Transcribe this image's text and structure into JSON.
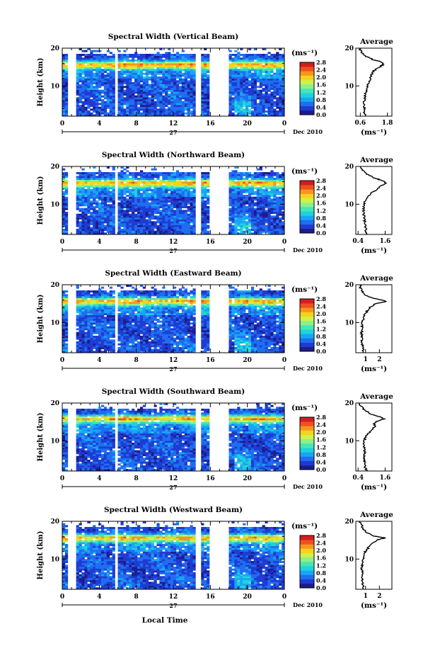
{
  "figure": {
    "ylabel": "Height (km)",
    "xlabel": "Local Time",
    "date_label": "Dec 2010",
    "day_label": "27",
    "average_title": "Average",
    "colorbar_unit": "(ms⁻¹)",
    "average_xlabel": "(ms⁻¹)"
  },
  "colors": {
    "colormap": [
      "#1c1c8c",
      "#1e3cd2",
      "#1e6ef0",
      "#19a5f5",
      "#1ed2dc",
      "#46e6b4",
      "#8cf08c",
      "#d2f046",
      "#f5d21e",
      "#f5961e",
      "#f0501e",
      "#d21e1e"
    ],
    "no_data": "#ffffff"
  },
  "chart_data": [
    {
      "type": "heatmap",
      "title": "Spectral Width (Vertical Beam)",
      "x_ticks": [
        "0",
        "4",
        "8",
        "12",
        "16",
        "20",
        "0"
      ],
      "xlim": [
        0,
        24
      ],
      "y_ticks": [
        "20",
        "10"
      ],
      "ylim": [
        2,
        20
      ],
      "colorbar_ticks": [
        "2.8",
        "2.4",
        "2.0",
        "1.6",
        "1.2",
        "0.8",
        "0.4",
        "0.0"
      ],
      "colorbar_range": [
        0,
        2.8
      ],
      "data_gaps_hours": [
        [
          0.5,
          1.4
        ],
        [
          5.6,
          6.0
        ],
        [
          14.4,
          15.0
        ],
        [
          15.8,
          18.0
        ]
      ],
      "average": {
        "type": "line",
        "title": "Average",
        "x_ticks": [
          "0.6",
          "1.8"
        ],
        "xlim": [
          0.4,
          2.0
        ],
        "y_ticks": [
          "20",
          "10"
        ],
        "profile": [
          [
            2,
            0.8
          ],
          [
            3,
            0.78
          ],
          [
            4,
            0.8
          ],
          [
            5,
            0.75
          ],
          [
            6,
            0.78
          ],
          [
            7,
            0.8
          ],
          [
            8,
            0.82
          ],
          [
            9,
            0.88
          ],
          [
            10,
            0.92
          ],
          [
            11,
            0.98
          ],
          [
            12,
            1.05
          ],
          [
            13,
            1.1
          ],
          [
            14,
            1.2
          ],
          [
            15,
            1.45
          ],
          [
            15.6,
            1.6
          ],
          [
            16.3,
            1.55
          ],
          [
            17,
            1.15
          ],
          [
            18,
            0.8
          ],
          [
            19,
            0.65
          ],
          [
            20,
            0.55
          ]
        ]
      }
    },
    {
      "type": "heatmap",
      "title": "Spectral Width (Northward Beam)",
      "x_ticks": [
        "0",
        "4",
        "8",
        "12",
        "16",
        "20",
        "0"
      ],
      "xlim": [
        0,
        24
      ],
      "y_ticks": [
        "20",
        "10"
      ],
      "ylim": [
        2,
        20
      ],
      "colorbar_ticks": [
        "2.8",
        "2.4",
        "2.0",
        "1.6",
        "1.2",
        "0.8",
        "0.4",
        "0.0"
      ],
      "colorbar_range": [
        0,
        2.8
      ],
      "data_gaps_hours": [
        [
          0.5,
          1.4
        ],
        [
          5.6,
          6.0
        ],
        [
          14.4,
          15.0
        ],
        [
          15.8,
          18.0
        ]
      ],
      "average": {
        "type": "line",
        "title": "Average",
        "x_ticks": [
          "0.4",
          "1.6"
        ],
        "xlim": [
          0.3,
          1.9
        ],
        "y_ticks": [
          "20",
          "10"
        ],
        "profile": [
          [
            2,
            0.8
          ],
          [
            3,
            0.75
          ],
          [
            4,
            0.72
          ],
          [
            5,
            0.7
          ],
          [
            6,
            0.68
          ],
          [
            7,
            0.66
          ],
          [
            8,
            0.65
          ],
          [
            9,
            0.64
          ],
          [
            10,
            0.66
          ],
          [
            11,
            0.72
          ],
          [
            12,
            0.82
          ],
          [
            13,
            1.0
          ],
          [
            14,
            1.25
          ],
          [
            15,
            1.45
          ],
          [
            15.6,
            1.65
          ],
          [
            16.4,
            1.4
          ],
          [
            17,
            1.1
          ],
          [
            18,
            0.8
          ],
          [
            19,
            0.6
          ],
          [
            20,
            0.5
          ]
        ]
      }
    },
    {
      "type": "heatmap",
      "title": "Spectral Width (Eastward Beam)",
      "x_ticks": [
        "0",
        "4",
        "8",
        "12",
        "16",
        "20",
        "0"
      ],
      "xlim": [
        0,
        24
      ],
      "y_ticks": [
        "20",
        "10"
      ],
      "ylim": [
        2,
        20
      ],
      "colorbar_ticks": [
        "2.8",
        "2.4",
        "2.0",
        "1.6",
        "1.2",
        "0.8",
        "0.4",
        "0.0"
      ],
      "colorbar_range": [
        0,
        2.8
      ],
      "data_gaps_hours": [
        [
          0.5,
          1.4
        ],
        [
          5.6,
          6.0
        ],
        [
          14.4,
          15.0
        ],
        [
          15.8,
          18.0
        ]
      ],
      "average": {
        "type": "line",
        "title": "Average",
        "x_ticks": [
          "1",
          "2"
        ],
        "xlim": [
          0.3,
          2.9
        ],
        "y_ticks": [
          "20",
          "10"
        ],
        "profile": [
          [
            2,
            0.9
          ],
          [
            3,
            0.8
          ],
          [
            4,
            0.78
          ],
          [
            5,
            0.76
          ],
          [
            6,
            0.74
          ],
          [
            7,
            0.72
          ],
          [
            8,
            0.72
          ],
          [
            9,
            0.74
          ],
          [
            10,
            0.78
          ],
          [
            11,
            0.85
          ],
          [
            12,
            0.95
          ],
          [
            13,
            1.1
          ],
          [
            14,
            1.3
          ],
          [
            15,
            1.7
          ],
          [
            15.6,
            2.5
          ],
          [
            16.4,
            1.6
          ],
          [
            17,
            1.1
          ],
          [
            18,
            0.8
          ],
          [
            19,
            0.65
          ],
          [
            20,
            0.6
          ]
        ]
      }
    },
    {
      "type": "heatmap",
      "title": "Spectral Width (Southward Beam)",
      "x_ticks": [
        "0",
        "4",
        "8",
        "12",
        "16",
        "20",
        "0"
      ],
      "xlim": [
        0,
        24
      ],
      "y_ticks": [
        "20",
        "10"
      ],
      "ylim": [
        2,
        20
      ],
      "colorbar_ticks": [
        "2.8",
        "2.4",
        "2.0",
        "1.6",
        "1.2",
        "0.8",
        "0.4",
        "0.0"
      ],
      "colorbar_range": [
        0,
        2.8
      ],
      "data_gaps_hours": [
        [
          0.5,
          1.4
        ],
        [
          5.6,
          6.0
        ],
        [
          14.4,
          15.0
        ],
        [
          15.8,
          18.0
        ]
      ],
      "average": {
        "type": "line",
        "title": "Average",
        "x_ticks": [
          "0.4",
          "1.6"
        ],
        "xlim": [
          0.3,
          1.9
        ],
        "y_ticks": [
          "20",
          "10"
        ],
        "profile": [
          [
            2,
            0.8
          ],
          [
            3,
            0.72
          ],
          [
            4,
            0.7
          ],
          [
            5,
            0.66
          ],
          [
            6,
            0.68
          ],
          [
            7,
            0.72
          ],
          [
            8,
            0.66
          ],
          [
            9,
            0.64
          ],
          [
            10,
            0.66
          ],
          [
            11,
            0.74
          ],
          [
            12,
            0.85
          ],
          [
            13,
            1.05
          ],
          [
            14,
            1.15
          ],
          [
            14.6,
            1.1
          ],
          [
            15.2,
            1.25
          ],
          [
            15.8,
            1.55
          ],
          [
            16.5,
            1.3
          ],
          [
            17,
            1.0
          ],
          [
            18,
            0.7
          ],
          [
            19,
            0.55
          ],
          [
            20,
            0.45
          ]
        ]
      }
    },
    {
      "type": "heatmap",
      "title": "Spectral Width (Westward Beam)",
      "x_ticks": [
        "0",
        "4",
        "8",
        "12",
        "16",
        "20",
        "0"
      ],
      "xlim": [
        0,
        24
      ],
      "y_ticks": [
        "20",
        "10"
      ],
      "ylim": [
        2,
        20
      ],
      "colorbar_ticks": [
        "2.8",
        "2.4",
        "2.0",
        "1.6",
        "1.2",
        "0.8",
        "0.4",
        "0.0"
      ],
      "colorbar_range": [
        0,
        2.8
      ],
      "data_gaps_hours": [
        [
          0.5,
          1.4
        ],
        [
          5.6,
          6.0
        ],
        [
          14.4,
          15.0
        ],
        [
          15.8,
          18.0
        ]
      ],
      "average": {
        "type": "line",
        "title": "Average",
        "x_ticks": [
          "1",
          "2"
        ],
        "xlim": [
          0.3,
          2.9
        ],
        "y_ticks": [
          "20",
          "10"
        ],
        "profile": [
          [
            2,
            0.85
          ],
          [
            3,
            0.8
          ],
          [
            4,
            0.78
          ],
          [
            5,
            0.76
          ],
          [
            6,
            0.76
          ],
          [
            7,
            0.74
          ],
          [
            8,
            0.74
          ],
          [
            9,
            0.76
          ],
          [
            10,
            0.8
          ],
          [
            11,
            0.88
          ],
          [
            12,
            1.0
          ],
          [
            13,
            1.2
          ],
          [
            14,
            1.4
          ],
          [
            15,
            1.8
          ],
          [
            15.6,
            2.4
          ],
          [
            16.2,
            1.5
          ],
          [
            17,
            1.1
          ],
          [
            18,
            0.85
          ],
          [
            19,
            0.7
          ],
          [
            20,
            0.6
          ]
        ]
      }
    }
  ]
}
